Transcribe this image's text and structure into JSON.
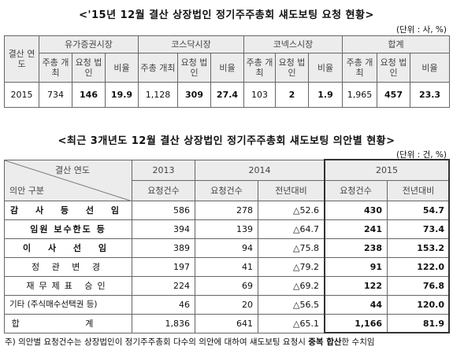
{
  "table1": {
    "title": "<'15년 12월 결산 상장법인 정기주주총회 섀도보팅 요청 현황>",
    "unit": "(단위 : 사, %)",
    "col_year": "결산 연도",
    "groups": [
      "유가증권시장",
      "코스닥시장",
      "코넥스시장",
      "합계"
    ],
    "sub_headers": [
      "주총 개최",
      "요청 법인",
      "비율"
    ],
    "row": {
      "year": "2015",
      "values": [
        "734",
        "146",
        "19.9",
        "1,128",
        "309",
        "27.4",
        "103",
        "2",
        "1.9",
        "1,965",
        "457",
        "23.3"
      ]
    }
  },
  "table2": {
    "title": "<최근 3개년도 12월 결산 상장법인 정기주주총회 섀도보팅 의안별 현황>",
    "unit": "(단위 : 건, %)",
    "corner_top": "결산 연도",
    "corner_bottom": "의안 구분",
    "years": [
      "2013",
      "2014",
      "2015"
    ],
    "sub_headers": {
      "c2013": "요청건수",
      "c2014a": "요청건수",
      "c2014b": "전년대비",
      "c2015a": "요청건수",
      "c2015b": "전년대비"
    },
    "rows": [
      {
        "label": "감 사 등 선 임",
        "v": [
          "586",
          "278",
          "△52.6",
          "430",
          "54.7"
        ]
      },
      {
        "label": "임원 보수한도 등",
        "v": [
          "394",
          "139",
          "△64.7",
          "241",
          "73.4"
        ]
      },
      {
        "label": "이 사 선 임",
        "v": [
          "389",
          "94",
          "△75.8",
          "238",
          "153.2"
        ]
      },
      {
        "label": "정 관 변 경",
        "v": [
          "197",
          "41",
          "△79.2",
          "91",
          "122.0"
        ]
      },
      {
        "label": "재무제표 승인",
        "v": [
          "224",
          "69",
          "△69.2",
          "122",
          "76.8"
        ]
      },
      {
        "label": "기타 (주식매수선택권 등)",
        "v": [
          "46",
          "20",
          "△56.5",
          "44",
          "120.0"
        ]
      },
      {
        "label": "합 계",
        "v": [
          "1,836",
          "641",
          "△65.1",
          "1,166",
          "81.9"
        ]
      }
    ],
    "note_prefix": "주) 의안별 요청건수는 상장법인이 정기주주총회 다수의 의안에 대하여 섀도보팅 요청시 ",
    "note_bold": "중복 합산",
    "note_suffix": "한 수치임"
  }
}
